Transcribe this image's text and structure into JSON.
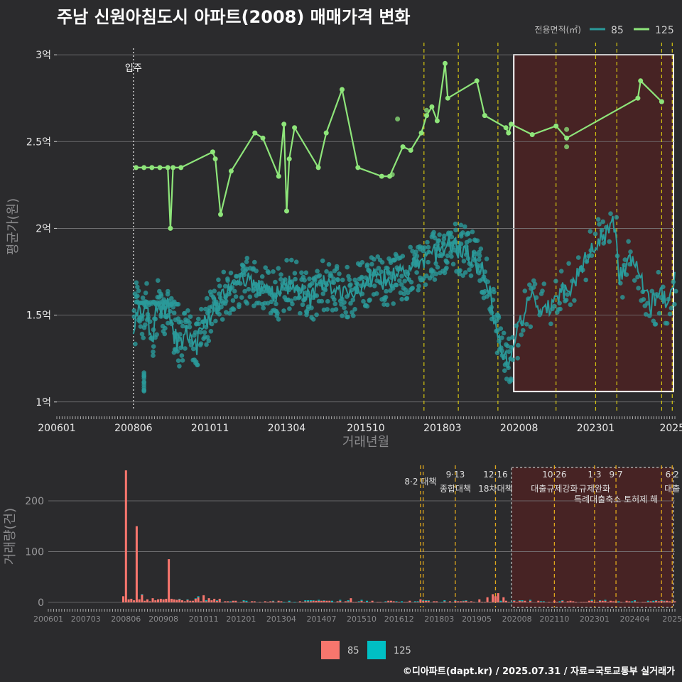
{
  "header": {
    "title": "주남 신원아침도시 아파트(2008) 매매가격 변화"
  },
  "footer": {
    "credit": "©디아파트(dapt.kr) / 2025.07.31 / 자료=국토교통부 실거래가"
  },
  "colors": {
    "background": "#2b2b2d",
    "s85": "#2a9a9a",
    "s125": "#8ee57a",
    "bar85": "#f8766d",
    "bar125": "#00bfc4",
    "policy": "#d4c410",
    "highlight_box": "#ffffff",
    "highlight_fill": "#4a2224"
  },
  "chart_data": [
    {
      "type": "line",
      "ylabel": "평균가(원)",
      "xlabel": "거래년월",
      "y_ticks": [
        "1억",
        "1.5억",
        "2억",
        "2.5억",
        "3억"
      ],
      "y_tick_values": [
        1.0,
        1.5,
        2.0,
        2.5,
        3.0
      ],
      "ylim": [
        0.95,
        3.07
      ],
      "xlim": [
        "2006-01",
        "2025-07"
      ],
      "x_ticks": [
        "200601",
        "200806",
        "201011",
        "201304",
        "201510",
        "201803",
        "202008",
        "202301",
        "2025"
      ],
      "x_tick_values": [
        "2006-01",
        "2008-06",
        "2010-11",
        "2013-04",
        "2015-10",
        "2018-03",
        "2020-08",
        "2023-01",
        "2025-06"
      ],
      "grid": true,
      "legend_title": "전용면적(㎡)",
      "legend_position": "top-right",
      "annotation": {
        "label": "입주",
        "x": "2008-06"
      },
      "policy_dates": [
        "2017-08",
        "2018-09",
        "2019-12",
        "2021-10",
        "2023-01",
        "2023-09",
        "2025-02",
        "2025-06"
      ],
      "highlight": {
        "from": "2020-06",
        "to": "2025-07",
        "y_from": 1.06,
        "y_to": 3.0
      },
      "series": [
        {
          "name": "125",
          "points": [
            [
              "2008-07",
              2.35
            ],
            [
              "2008-10",
              2.35
            ],
            [
              "2009-01",
              2.35
            ],
            [
              "2009-04",
              2.35
            ],
            [
              "2009-07",
              2.35
            ],
            [
              "2009-08",
              2.0
            ],
            [
              "2009-09",
              2.35
            ],
            [
              "2009-12",
              2.35
            ],
            [
              "2010-12",
              2.44
            ],
            [
              "2011-01",
              2.4
            ],
            [
              "2011-03",
              2.08
            ],
            [
              "2011-07",
              2.33
            ],
            [
              "2012-04",
              2.55
            ],
            [
              "2012-07",
              2.52
            ],
            [
              "2013-01",
              2.3
            ],
            [
              "2013-03",
              2.6
            ],
            [
              "2013-04",
              2.1
            ],
            [
              "2013-05",
              2.4
            ],
            [
              "2013-07",
              2.58
            ],
            [
              "2014-04",
              2.35
            ],
            [
              "2014-07",
              2.55
            ],
            [
              "2015-01",
              2.8
            ],
            [
              "2015-07",
              2.35
            ],
            [
              "2016-04",
              2.3
            ],
            [
              "2016-07",
              2.3
            ],
            [
              "2016-12",
              2.47
            ],
            [
              "2017-03",
              2.45
            ],
            [
              "2017-07",
              2.55
            ],
            [
              "2017-09",
              2.65
            ],
            [
              "2017-11",
              2.7
            ],
            [
              "2018-01",
              2.62
            ],
            [
              "2018-04",
              2.95
            ],
            [
              "2018-05",
              2.75
            ],
            [
              "2019-04",
              2.85
            ],
            [
              "2019-07",
              2.65
            ],
            [
              "2020-03",
              2.58
            ],
            [
              "2020-04",
              2.55
            ],
            [
              "2020-05",
              2.6
            ],
            [
              "2021-01",
              2.54
            ],
            [
              "2021-10",
              2.59
            ],
            [
              "2022-02",
              2.52
            ],
            [
              "2024-05",
              2.75
            ],
            [
              "2024-06",
              2.85
            ],
            [
              "2025-02",
              2.73
            ]
          ],
          "extra_points": [
            [
              "2010-12",
              2.44
            ],
            [
              "2016-08",
              2.31
            ],
            [
              "2016-10",
              2.63
            ],
            [
              "2017-09",
              2.68
            ],
            [
              "2022-02",
              2.57
            ],
            [
              "2022-02",
              2.47
            ]
          ]
        },
        {
          "name": "85",
          "anchors": [
            [
              "2008-06",
              1.38
            ],
            [
              "2008-07",
              1.57
            ],
            [
              "2008-09",
              1.47
            ],
            [
              "2008-11",
              1.57
            ],
            [
              "2009-01",
              1.3
            ],
            [
              "2009-03",
              1.57
            ],
            [
              "2009-05",
              1.52
            ],
            [
              "2009-07",
              1.57
            ],
            [
              "2009-08",
              1.45
            ],
            [
              "2009-11",
              1.33
            ],
            [
              "2010-03",
              1.4
            ],
            [
              "2010-06",
              1.33
            ],
            [
              "2010-09",
              1.45
            ],
            [
              "2011-01",
              1.55
            ],
            [
              "2011-04",
              1.62
            ],
            [
              "2011-08",
              1.68
            ],
            [
              "2012-01",
              1.7
            ],
            [
              "2012-06",
              1.66
            ],
            [
              "2013-01",
              1.62
            ],
            [
              "2013-06",
              1.7
            ],
            [
              "2014-01",
              1.6
            ],
            [
              "2014-06",
              1.68
            ],
            [
              "2015-01",
              1.62
            ],
            [
              "2015-06",
              1.65
            ],
            [
              "2016-01",
              1.72
            ],
            [
              "2016-06",
              1.7
            ],
            [
              "2017-01",
              1.74
            ],
            [
              "2017-06",
              1.8
            ],
            [
              "2018-01",
              1.86
            ],
            [
              "2018-06",
              1.9
            ],
            [
              "2019-01",
              1.85
            ],
            [
              "2019-06",
              1.76
            ],
            [
              "2019-09",
              1.62
            ],
            [
              "2019-12",
              1.35
            ],
            [
              "2020-04",
              1.22
            ],
            [
              "2020-06",
              1.35
            ],
            [
              "2020-09",
              1.48
            ],
            [
              "2021-01",
              1.6
            ],
            [
              "2021-06",
              1.52
            ],
            [
              "2021-10",
              1.62
            ],
            [
              "2022-04",
              1.68
            ],
            [
              "2022-08",
              1.78
            ],
            [
              "2022-12",
              1.88
            ],
            [
              "2023-03",
              1.94
            ],
            [
              "2023-08",
              2.02
            ],
            [
              "2023-10",
              1.72
            ],
            [
              "2024-02",
              1.85
            ],
            [
              "2024-06",
              1.7
            ],
            [
              "2024-10",
              1.55
            ],
            [
              "2025-01",
              1.62
            ],
            [
              "2025-04",
              1.58
            ],
            [
              "2025-07",
              1.72
            ]
          ]
        }
      ]
    },
    {
      "type": "bar",
      "ylabel": "거래량(건)",
      "y_ticks": [
        "0",
        "100",
        "200"
      ],
      "y_tick_values": [
        0,
        100,
        200
      ],
      "ylim": [
        -10,
        270
      ],
      "xlim": [
        "2006-01",
        "2025-07"
      ],
      "x_ticks": [
        "200601",
        "200703",
        "200806",
        "200908",
        "201011",
        "201201",
        "201304",
        "201407",
        "201510",
        "201612",
        "201803",
        "201905",
        "202008",
        "202110",
        "202301",
        "202404",
        "2025"
      ],
      "x_tick_values": [
        "2006-01",
        "2007-03",
        "2008-06",
        "2009-08",
        "2010-11",
        "2012-01",
        "2013-04",
        "2014-07",
        "2015-10",
        "2016-12",
        "2018-03",
        "2019-05",
        "2020-08",
        "2021-10",
        "2023-01",
        "2024-04",
        "2025-06"
      ],
      "grid": true,
      "legend_position": "bottom",
      "series_names": [
        "85",
        "125"
      ],
      "policy_annotations": [
        {
          "x": "2017-08",
          "date_label": "8·2 대책",
          "name_label": ""
        },
        {
          "x": "2018-09",
          "date_label": "9·13",
          "name_label": "종합대책"
        },
        {
          "x": "2019-12",
          "date_label": "12·16",
          "name_label": "18차대책"
        },
        {
          "x": "2021-10",
          "date_label": "10·26",
          "name_label": "대출규제강화"
        },
        {
          "x": "2023-01",
          "date_label": "1·3",
          "name_label": "규제완화"
        },
        {
          "x": "2023-09",
          "date_label": "9·7",
          "name_label": "특례대출축소 토허제 해"
        },
        {
          "x": "2025-06",
          "date_label": "6·2",
          "name_label": "대출"
        }
      ],
      "highlight": {
        "from": "2020-06",
        "to": "2025-07"
      },
      "spikes": [
        [
          "2008-05",
          12
        ],
        [
          "2008-06",
          260
        ],
        [
          "2008-07",
          6
        ],
        [
          "2008-09",
          4
        ],
        [
          "2008-10",
          150
        ],
        [
          "2008-12",
          15
        ],
        [
          "2009-02",
          6
        ],
        [
          "2009-04",
          8
        ],
        [
          "2009-06",
          6
        ],
        [
          "2009-08",
          6
        ],
        [
          "2009-10",
          85
        ],
        [
          "2010-03",
          4
        ],
        [
          "2010-09",
          10
        ],
        [
          "2010-11",
          14
        ],
        [
          "2011-01",
          8
        ],
        [
          "2015-06",
          8
        ],
        [
          "2017-08",
          6
        ],
        [
          "2019-06",
          6
        ],
        [
          "2019-09",
          10
        ],
        [
          "2019-11",
          16
        ],
        [
          "2019-12",
          12
        ],
        [
          "2020-01",
          18
        ],
        [
          "2020-03",
          10
        ]
      ]
    }
  ]
}
